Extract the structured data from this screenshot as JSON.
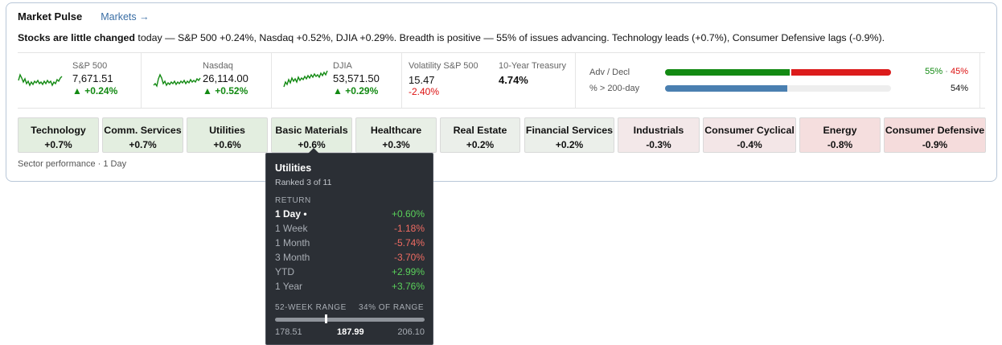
{
  "header": {
    "title": "Market Pulse",
    "markets_link": "Markets →"
  },
  "summary": {
    "lead": "Stocks are little changed",
    "rest": " today — S&P 500 +0.24%, Nasdaq +0.52%, DJIA +0.29%. Breadth is positive — 55% of issues advancing. Technology leads (+0.7%), Consumer Defensive lags (-0.9%)."
  },
  "indices": [
    {
      "name": "S&P 500",
      "value": "7,671.51",
      "change": "▲ +0.24%"
    },
    {
      "name": "Nasdaq",
      "value": "26,114.00",
      "change": "▲ +0.52%"
    },
    {
      "name": "DJIA",
      "value": "53,571.50",
      "change": "▲ +0.29%"
    }
  ],
  "volatility": {
    "name": "Volatility S&P 500",
    "value": "15.47",
    "change": "-2.40%"
  },
  "treasury": {
    "name": "10-Year Treasury",
    "value": "4.74%"
  },
  "breadth": {
    "adv_label": "Adv / Decl",
    "adv_pct": 55,
    "decl_pct": 45,
    "adv_text": "55%",
    "sep": " · ",
    "decl_text": "45%",
    "above200_label": "% > 200-day",
    "above200_pct": 54,
    "above200_text": "54%",
    "colors": {
      "adv": "#138a13",
      "decl": "#dc1c1c",
      "above200": "#4a7fb0"
    }
  },
  "sectors": [
    {
      "name": "Technology",
      "change": "+0.7%",
      "color": "#e3eee0"
    },
    {
      "name": "Comm. Services",
      "change": "+0.7%",
      "color": "#e3eee0"
    },
    {
      "name": "Utilities",
      "change": "+0.6%",
      "color": "#e3eee0"
    },
    {
      "name": "Basic Materials",
      "change": "+0.6%",
      "color": "#e3eee0"
    },
    {
      "name": "Healthcare",
      "change": "+0.3%",
      "color": "#e8efe6"
    },
    {
      "name": "Real Estate",
      "change": "+0.2%",
      "color": "#ebefea"
    },
    {
      "name": "Financial Services",
      "change": "+0.2%",
      "color": "#ebefea"
    },
    {
      "name": "Industrials",
      "change": "-0.3%",
      "color": "#f3e8e9"
    },
    {
      "name": "Consumer Cyclical",
      "change": "-0.4%",
      "color": "#f3e6e7"
    },
    {
      "name": "Energy",
      "change": "-0.8%",
      "color": "#f5dede"
    },
    {
      "name": "Consumer Defensive",
      "change": "-0.9%",
      "color": "#f5dcdc"
    }
  ],
  "footnote": "Sector performance · 1 Day",
  "tooltip": {
    "title": "Utilities",
    "rank": "Ranked 3 of 11",
    "return_label": "RETURN",
    "returns": [
      {
        "period": "1 Day •",
        "value": "+0.60%",
        "sign": "pos",
        "active": true
      },
      {
        "period": "1 Week",
        "value": "-1.18%",
        "sign": "neg",
        "active": false
      },
      {
        "period": "1 Month",
        "value": "-5.74%",
        "sign": "neg",
        "active": false
      },
      {
        "period": "3 Month",
        "value": "-3.70%",
        "sign": "neg",
        "active": false
      },
      {
        "period": "YTD",
        "value": "+2.99%",
        "sign": "pos",
        "active": false
      },
      {
        "period": "1 Year",
        "value": "+3.76%",
        "sign": "pos",
        "active": false
      }
    ],
    "range_label": "52-WEEK RANGE",
    "range_pct_label": "34% OF RANGE",
    "range_fraction": 0.34,
    "range_low": "178.51",
    "range_current": "187.99",
    "range_high": "206.10"
  }
}
